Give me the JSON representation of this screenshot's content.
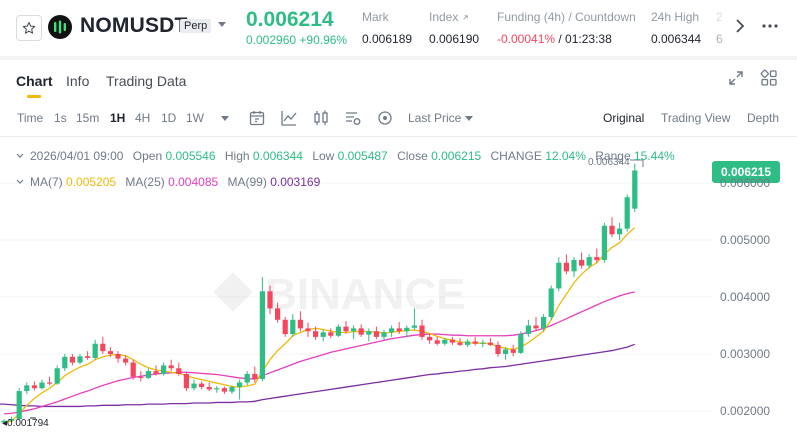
{
  "header": {
    "symbol": "NOMUSDT",
    "contract_type": "Perp",
    "last_price": "0.006214",
    "price_change": "0.002960 +90.96%",
    "stats": [
      {
        "label": "Mark",
        "value": "0.006189"
      },
      {
        "label": "Index",
        "value": "0.006190"
      },
      {
        "label": "Funding (4h) / Countdown",
        "funding": "-0.00041%",
        "countdown": "/ 01:23:38"
      },
      {
        "label": "24h High",
        "value": "0.006344"
      },
      {
        "label": "2",
        "value": "6"
      }
    ],
    "icons": {
      "favorite": "star-icon",
      "logo": "nom-logo-icon",
      "next": "chevron-right-icon",
      "more": "more-options-icon"
    }
  },
  "tabs": [
    {
      "label": "Chart",
      "active": true
    },
    {
      "label": "Info",
      "active": false
    },
    {
      "label": "Trading Data",
      "active": false
    }
  ],
  "toolbar": {
    "intervals": [
      "Time",
      "1s",
      "15m",
      "1H",
      "4H",
      "1D",
      "1W"
    ],
    "active_interval": "1H",
    "price_type": "Last Price",
    "views": [
      "Original",
      "Trading View",
      "Depth"
    ],
    "active_view": "Original"
  },
  "ohlc": {
    "date": "2026/04/01 09:00",
    "open_label": "Open",
    "open": "0.005546",
    "high_label": "High",
    "high": "0.006344",
    "low_label": "Low",
    "low": "0.005487",
    "close_label": "Close",
    "close": "0.006215",
    "change_label": "CHANGE",
    "change": "12.04%",
    "range_label": "Range",
    "range": "15.44%"
  },
  "ma": {
    "ma7_label": "MA(7)",
    "ma7": "0.005205",
    "ma25_label": "MA(25)",
    "ma25": "0.004085",
    "ma99_label": "MA(99)",
    "ma99": "0.003169"
  },
  "chart": {
    "current_price_tag": "0.006215",
    "high_marker": "0.006344",
    "low_marker": "0.001794",
    "y_axis_ticks": [
      "0.006000",
      "0.005000",
      "0.004000",
      "0.003000",
      "0.002000"
    ],
    "watermark": "BINANCE",
    "colors": {
      "up": "#2ebd85",
      "down": "#f6465d",
      "ma7": "#f0b90b",
      "ma25": "#e53fbf",
      "ma99": "#7b2fa1",
      "accent": "#f0b90b"
    }
  },
  "chart_data": {
    "type": "candlestick",
    "ylim": [
      0.0017,
      0.0065
    ],
    "candles": [
      [
        0.0018,
        0.00185,
        0.00178,
        0.00183
      ],
      [
        0.00183,
        0.0019,
        0.0018,
        0.00186
      ],
      [
        0.00186,
        0.0024,
        0.00184,
        0.00235
      ],
      [
        0.00235,
        0.0025,
        0.0023,
        0.00245
      ],
      [
        0.00245,
        0.00252,
        0.00236,
        0.0024
      ],
      [
        0.0024,
        0.00255,
        0.00238,
        0.0025
      ],
      [
        0.0025,
        0.0026,
        0.00245,
        0.00248
      ],
      [
        0.00248,
        0.0028,
        0.00246,
        0.00275
      ],
      [
        0.00275,
        0.003,
        0.0027,
        0.00295
      ],
      [
        0.00295,
        0.003,
        0.0028,
        0.00285
      ],
      [
        0.00285,
        0.003,
        0.00282,
        0.00296
      ],
      [
        0.00296,
        0.00305,
        0.0029,
        0.00293
      ],
      [
        0.00293,
        0.00325,
        0.0029,
        0.00318
      ],
      [
        0.00318,
        0.0033,
        0.003,
        0.00305
      ],
      [
        0.00305,
        0.00312,
        0.00295,
        0.003
      ],
      [
        0.003,
        0.00305,
        0.00285,
        0.00292
      ],
      [
        0.00292,
        0.00298,
        0.0028,
        0.00285
      ],
      [
        0.00285,
        0.0029,
        0.00255,
        0.0026
      ],
      [
        0.0026,
        0.0027,
        0.00252,
        0.00258
      ],
      [
        0.00258,
        0.00275,
        0.00256,
        0.0027
      ],
      [
        0.0027,
        0.0028,
        0.00262,
        0.00265
      ],
      [
        0.00265,
        0.00285,
        0.00262,
        0.0028
      ],
      [
        0.0028,
        0.0029,
        0.0027,
        0.00275
      ],
      [
        0.00275,
        0.00285,
        0.00262,
        0.00265
      ],
      [
        0.00265,
        0.00268,
        0.00235,
        0.0024
      ],
      [
        0.0024,
        0.00255,
        0.00236,
        0.00248
      ],
      [
        0.00248,
        0.00252,
        0.00238,
        0.00242
      ],
      [
        0.00242,
        0.0025,
        0.00235,
        0.00238
      ],
      [
        0.00238,
        0.00244,
        0.00232,
        0.0024
      ],
      [
        0.0024,
        0.00243,
        0.0023,
        0.00234
      ],
      [
        0.00234,
        0.00245,
        0.0023,
        0.00242
      ],
      [
        0.00242,
        0.00255,
        0.0022,
        0.0025
      ],
      [
        0.0025,
        0.0027,
        0.00245,
        0.00265
      ],
      [
        0.00265,
        0.00278,
        0.0025,
        0.00256
      ],
      [
        0.00256,
        0.00435,
        0.00252,
        0.0041
      ],
      [
        0.0041,
        0.0042,
        0.0037,
        0.0038
      ],
      [
        0.0038,
        0.0039,
        0.00355,
        0.0036
      ],
      [
        0.0036,
        0.00365,
        0.0033,
        0.00335
      ],
      [
        0.00335,
        0.0037,
        0.0033,
        0.0036
      ],
      [
        0.0036,
        0.00375,
        0.0034,
        0.00345
      ],
      [
        0.00345,
        0.00355,
        0.0033,
        0.0034
      ],
      [
        0.0034,
        0.00348,
        0.00325,
        0.0033
      ],
      [
        0.0033,
        0.00342,
        0.00322,
        0.00338
      ],
      [
        0.00338,
        0.00345,
        0.00328,
        0.00332
      ],
      [
        0.00332,
        0.00352,
        0.0033,
        0.00348
      ],
      [
        0.00348,
        0.00358,
        0.00335,
        0.0034
      ],
      [
        0.0034,
        0.0035,
        0.00326,
        0.00345
      ],
      [
        0.00345,
        0.00352,
        0.0033,
        0.00334
      ],
      [
        0.00334,
        0.00345,
        0.00322,
        0.0034
      ],
      [
        0.0034,
        0.00348,
        0.00326,
        0.0033
      ],
      [
        0.0033,
        0.00342,
        0.00325,
        0.00338
      ],
      [
        0.00338,
        0.0035,
        0.0033,
        0.00345
      ],
      [
        0.00345,
        0.00356,
        0.00335,
        0.0034
      ],
      [
        0.0034,
        0.0035,
        0.0033,
        0.00346
      ],
      [
        0.00346,
        0.0038,
        0.00342,
        0.0035
      ],
      [
        0.0035,
        0.0036,
        0.00325,
        0.0033
      ],
      [
        0.0033,
        0.00336,
        0.00318,
        0.00324
      ],
      [
        0.00324,
        0.0033,
        0.00315,
        0.00318
      ],
      [
        0.00318,
        0.00328,
        0.00315,
        0.00325
      ],
      [
        0.00325,
        0.0033,
        0.00316,
        0.0032
      ],
      [
        0.0032,
        0.00328,
        0.00314,
        0.00316
      ],
      [
        0.00316,
        0.00326,
        0.00312,
        0.00322
      ],
      [
        0.00322,
        0.0033,
        0.00315,
        0.00318
      ],
      [
        0.00318,
        0.00325,
        0.00312,
        0.0032
      ],
      [
        0.0032,
        0.00328,
        0.00314,
        0.00316
      ],
      [
        0.00316,
        0.00322,
        0.00295,
        0.003
      ],
      [
        0.003,
        0.00312,
        0.0029,
        0.00308
      ],
      [
        0.00308,
        0.00316,
        0.00296,
        0.00302
      ],
      [
        0.00302,
        0.0034,
        0.003,
        0.00335
      ],
      [
        0.00335,
        0.0036,
        0.0033,
        0.0035
      ],
      [
        0.0035,
        0.00365,
        0.0034,
        0.00345
      ],
      [
        0.00345,
        0.0037,
        0.0034,
        0.00365
      ],
      [
        0.00365,
        0.0042,
        0.0036,
        0.00415
      ],
      [
        0.00415,
        0.0047,
        0.0041,
        0.0046
      ],
      [
        0.0046,
        0.00475,
        0.0044,
        0.00445
      ],
      [
        0.00445,
        0.0047,
        0.00435,
        0.00465
      ],
      [
        0.00465,
        0.00478,
        0.0045,
        0.00455
      ],
      [
        0.00455,
        0.00475,
        0.0045,
        0.0047
      ],
      [
        0.0047,
        0.00485,
        0.0046,
        0.00465
      ],
      [
        0.00465,
        0.0053,
        0.0046,
        0.00525
      ],
      [
        0.00525,
        0.0054,
        0.00505,
        0.0051
      ],
      [
        0.0051,
        0.0053,
        0.005,
        0.0052
      ],
      [
        0.0052,
        0.0058,
        0.00515,
        0.00575
      ],
      [
        0.00555,
        0.00634,
        0.00549,
        0.00622
      ]
    ],
    "ma7": [
      0.0018,
      0.00182,
      0.00195,
      0.0021,
      0.00222,
      0.00232,
      0.0024,
      0.0025,
      0.00262,
      0.0027,
      0.00277,
      0.00282,
      0.0029,
      0.00295,
      0.00298,
      0.00299,
      0.00297,
      0.0029,
      0.00282,
      0.00276,
      0.00272,
      0.0027,
      0.00268,
      0.00266,
      0.00262,
      0.00258,
      0.00255,
      0.00252,
      0.00249,
      0.00246,
      0.00243,
      0.00242,
      0.00244,
      0.00247,
      0.0027,
      0.0029,
      0.00306,
      0.00318,
      0.00332,
      0.00338,
      0.00343,
      0.00345,
      0.00343,
      0.0034,
      0.00338,
      0.00338,
      0.00339,
      0.0034,
      0.00339,
      0.00338,
      0.00337,
      0.00338,
      0.0034,
      0.00341,
      0.00342,
      0.0034,
      0.00336,
      0.00331,
      0.00327,
      0.00324,
      0.00321,
      0.0032,
      0.00319,
      0.00319,
      0.00318,
      0.00313,
      0.0031,
      0.00308,
      0.00312,
      0.0032,
      0.0033,
      0.0034,
      0.0036,
      0.00385,
      0.00405,
      0.00425,
      0.0044,
      0.00452,
      0.0046,
      0.00475,
      0.00487,
      0.00495,
      0.0051,
      0.00522
    ],
    "ma25": [
      0.00195,
      0.00196,
      0.00198,
      0.00201,
      0.00204,
      0.00208,
      0.00212,
      0.00216,
      0.00221,
      0.00226,
      0.00231,
      0.00235,
      0.0024,
      0.00245,
      0.00249,
      0.00253,
      0.00256,
      0.00259,
      0.00261,
      0.00263,
      0.00265,
      0.00266,
      0.00267,
      0.00268,
      0.00268,
      0.00267,
      0.00266,
      0.00265,
      0.00264,
      0.00262,
      0.0026,
      0.00258,
      0.00257,
      0.00256,
      0.00262,
      0.00267,
      0.00272,
      0.00277,
      0.00282,
      0.00287,
      0.00291,
      0.00295,
      0.00299,
      0.00303,
      0.00306,
      0.00309,
      0.00312,
      0.00315,
      0.00318,
      0.00321,
      0.00324,
      0.00327,
      0.00329,
      0.00331,
      0.00333,
      0.00334,
      0.00335,
      0.00335,
      0.00334,
      0.00333,
      0.00333,
      0.00332,
      0.00332,
      0.00332,
      0.00332,
      0.00332,
      0.00332,
      0.00333,
      0.00335,
      0.00338,
      0.00341,
      0.00345,
      0.0035,
      0.00356,
      0.00362,
      0.00368,
      0.00374,
      0.0038,
      0.00386,
      0.00392,
      0.00397,
      0.00402,
      0.00406,
      0.00409
    ],
    "ma99": [
      0.00212,
      0.00211,
      0.0021,
      0.00209,
      0.00209,
      0.00208,
      0.00208,
      0.00208,
      0.00208,
      0.00208,
      0.00208,
      0.00209,
      0.00209,
      0.0021,
      0.0021,
      0.0021,
      0.00211,
      0.00211,
      0.00211,
      0.00212,
      0.00212,
      0.00212,
      0.00213,
      0.00213,
      0.00213,
      0.00214,
      0.00214,
      0.00214,
      0.00215,
      0.00215,
      0.00215,
      0.00216,
      0.00216,
      0.00217,
      0.0022,
      0.00222,
      0.00224,
      0.00226,
      0.00228,
      0.0023,
      0.00232,
      0.00234,
      0.00236,
      0.00238,
      0.0024,
      0.00242,
      0.00244,
      0.00246,
      0.00248,
      0.0025,
      0.00252,
      0.00254,
      0.00256,
      0.00258,
      0.0026,
      0.00262,
      0.00264,
      0.00265,
      0.00267,
      0.00268,
      0.0027,
      0.00271,
      0.00273,
      0.00274,
      0.00276,
      0.00277,
      0.00278,
      0.0028,
      0.00282,
      0.00284,
      0.00286,
      0.00288,
      0.0029,
      0.00292,
      0.00294,
      0.00296,
      0.00298,
      0.003,
      0.00302,
      0.00304,
      0.00306,
      0.00309,
      0.00312,
      0.00317
    ]
  }
}
